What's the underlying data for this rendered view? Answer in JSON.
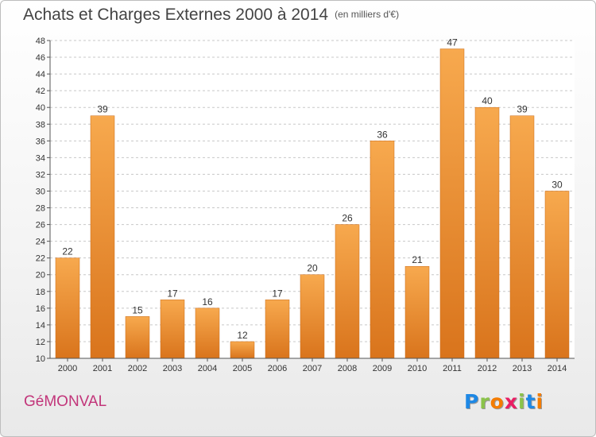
{
  "header": {
    "title": "Achats et Charges Externes 2000 à 2014",
    "subtitle": "(en milliers d'€)"
  },
  "footer": {
    "commune": "GéMONVAL",
    "logo_letters": [
      "P",
      "r",
      "o",
      "x",
      "i",
      "t",
      "i"
    ],
    "logo_colors": [
      "#1e88e5",
      "#8bc34a",
      "#f57c00",
      "#e91e63",
      "#8bc34a",
      "#1e88e5",
      "#f57c00"
    ]
  },
  "chart_data": {
    "type": "bar",
    "title": "Achats et Charges Externes 2000 à 2014",
    "categories": [
      "2000",
      "2001",
      "2002",
      "2003",
      "2004",
      "2005",
      "2006",
      "2007",
      "2008",
      "2009",
      "2010",
      "2011",
      "2012",
      "2013",
      "2014"
    ],
    "values": [
      22,
      39,
      15,
      17,
      16,
      12,
      17,
      20,
      26,
      36,
      21,
      47,
      40,
      39,
      30
    ],
    "ylim": [
      10,
      48
    ],
    "yticks": [
      10,
      12,
      14,
      16,
      18,
      20,
      22,
      24,
      26,
      28,
      30,
      32,
      34,
      36,
      38,
      40,
      42,
      44,
      46,
      48
    ],
    "xlabel": "",
    "ylabel": "",
    "grid": "horizontal dashed",
    "bar_color_top": "#f7a94e",
    "bar_color_bottom": "#d9741c"
  }
}
